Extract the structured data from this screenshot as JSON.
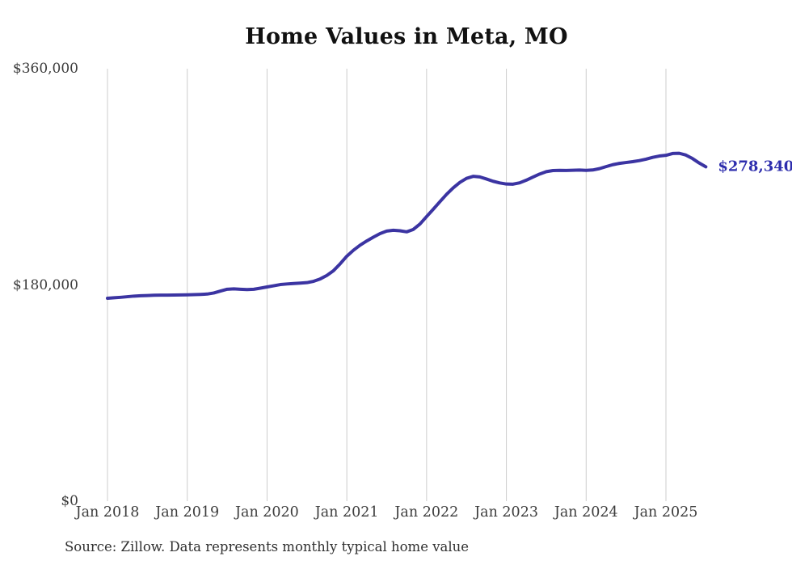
{
  "title": "Home Values in Meta, MO",
  "source_note": "Source: Zillow. Data represents monthly typical home value",
  "current_value_label": "$278,340",
  "colors": {
    "line": "#3b34a2",
    "value_label": "#2d2dad",
    "gridline": "#cccccc",
    "axis_text": "#3c3c3c",
    "title_text": "#111111",
    "source_text": "#303030",
    "background": "#ffffff"
  },
  "chart_data": {
    "type": "line",
    "title": "Home Values in Meta, MO",
    "xlabel": "",
    "ylabel": "",
    "x_start": "Jan 2018",
    "x_end": "Jul 2025",
    "frequency": "monthly",
    "x_tick_labels": [
      "Jan 2018",
      "Jan 2019",
      "Jan 2020",
      "Jan 2021",
      "Jan 2022",
      "Jan 2023",
      "Jan 2024",
      "Jan 2025"
    ],
    "y_ticks": [
      {
        "label": "$0",
        "value": 0
      },
      {
        "label": "$180,000",
        "value": 180000
      },
      {
        "label": "$360,000",
        "value": 360000
      }
    ],
    "ylim": [
      0,
      360000
    ],
    "grid": "vertical-only",
    "legend_position": "none",
    "annotation": {
      "text": "$278,340",
      "value": 278340,
      "position": "line-end"
    },
    "series": [
      {
        "name": "Monthly typical home value",
        "start": "2018-01",
        "values": [
          168900,
          169300,
          169700,
          170200,
          170700,
          171000,
          171200,
          171400,
          171500,
          171500,
          171600,
          171700,
          171800,
          171900,
          172100,
          172400,
          173300,
          174900,
          176400,
          176700,
          176400,
          176100,
          176400,
          177300,
          178300,
          179300,
          180300,
          180800,
          181200,
          181500,
          181900,
          183000,
          185000,
          187900,
          191900,
          197600,
          203900,
          208900,
          213100,
          216600,
          219800,
          222700,
          224800,
          225500,
          225100,
          224200,
          226200,
          230700,
          236900,
          243000,
          249300,
          255400,
          260800,
          265300,
          268700,
          270400,
          269900,
          268200,
          266300,
          264900,
          264000,
          263900,
          265000,
          267200,
          269800,
          272300,
          274300,
          275200,
          275400,
          275300,
          275500,
          275600,
          275400,
          275700,
          276800,
          278500,
          280100,
          281200,
          281900,
          282600,
          283500,
          284700,
          286200,
          287300,
          287900,
          289400,
          289600,
          288100,
          285200,
          281500,
          278340
        ]
      }
    ]
  }
}
